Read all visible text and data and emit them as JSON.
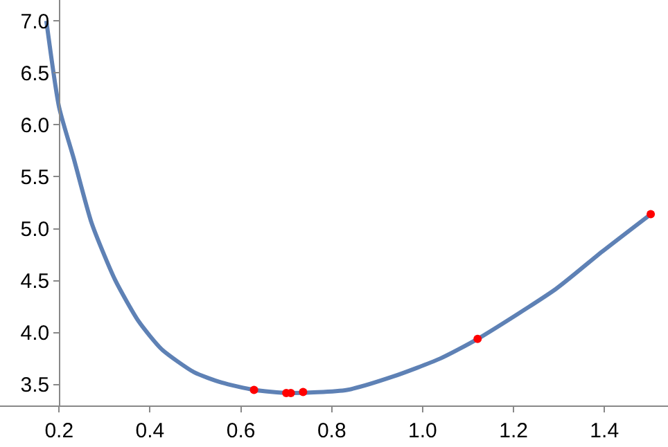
{
  "chart_data": {
    "type": "line",
    "xlim": [
      0.07,
      1.54
    ],
    "ylim": [
      3.3,
      7.2
    ],
    "xticks": [
      0.2,
      0.4,
      0.6,
      0.8,
      {
        "value": 1.0,
        "label": "1.0"
      },
      1.2,
      1.4
    ],
    "yticks": [
      3.5,
      {
        "value": 4.0,
        "label": "4.0"
      },
      4.5,
      {
        "value": 5.0,
        "label": "5.0"
      },
      5.5,
      {
        "value": 6.0,
        "label": "6.0"
      },
      6.5,
      {
        "value": 7.0,
        "label": "7.0"
      }
    ],
    "series": [
      {
        "color": "#5e81b5",
        "x": [
          0.172,
          0.2,
          0.232,
          0.272,
          0.323,
          0.375,
          0.426,
          0.497,
          0.558,
          0.629,
          0.706,
          0.834,
          0.936,
          1.038,
          1.121,
          1.293,
          1.395,
          1.502
        ],
        "values": [
          7.0,
          6.17,
          5.68,
          5.05,
          4.51,
          4.11,
          3.84,
          3.62,
          3.52,
          3.45,
          3.42,
          3.45,
          3.58,
          3.75,
          3.94,
          4.42,
          4.78,
          5.14
        ]
      },
      {
        "type": "scatter",
        "color": "#ff0000",
        "x": [
          0.629,
          0.7,
          0.71,
          0.737,
          1.121,
          1.502
        ],
        "values": [
          3.45,
          3.42,
          3.42,
          3.43,
          3.94,
          5.14
        ]
      }
    ],
    "legend": false
  }
}
